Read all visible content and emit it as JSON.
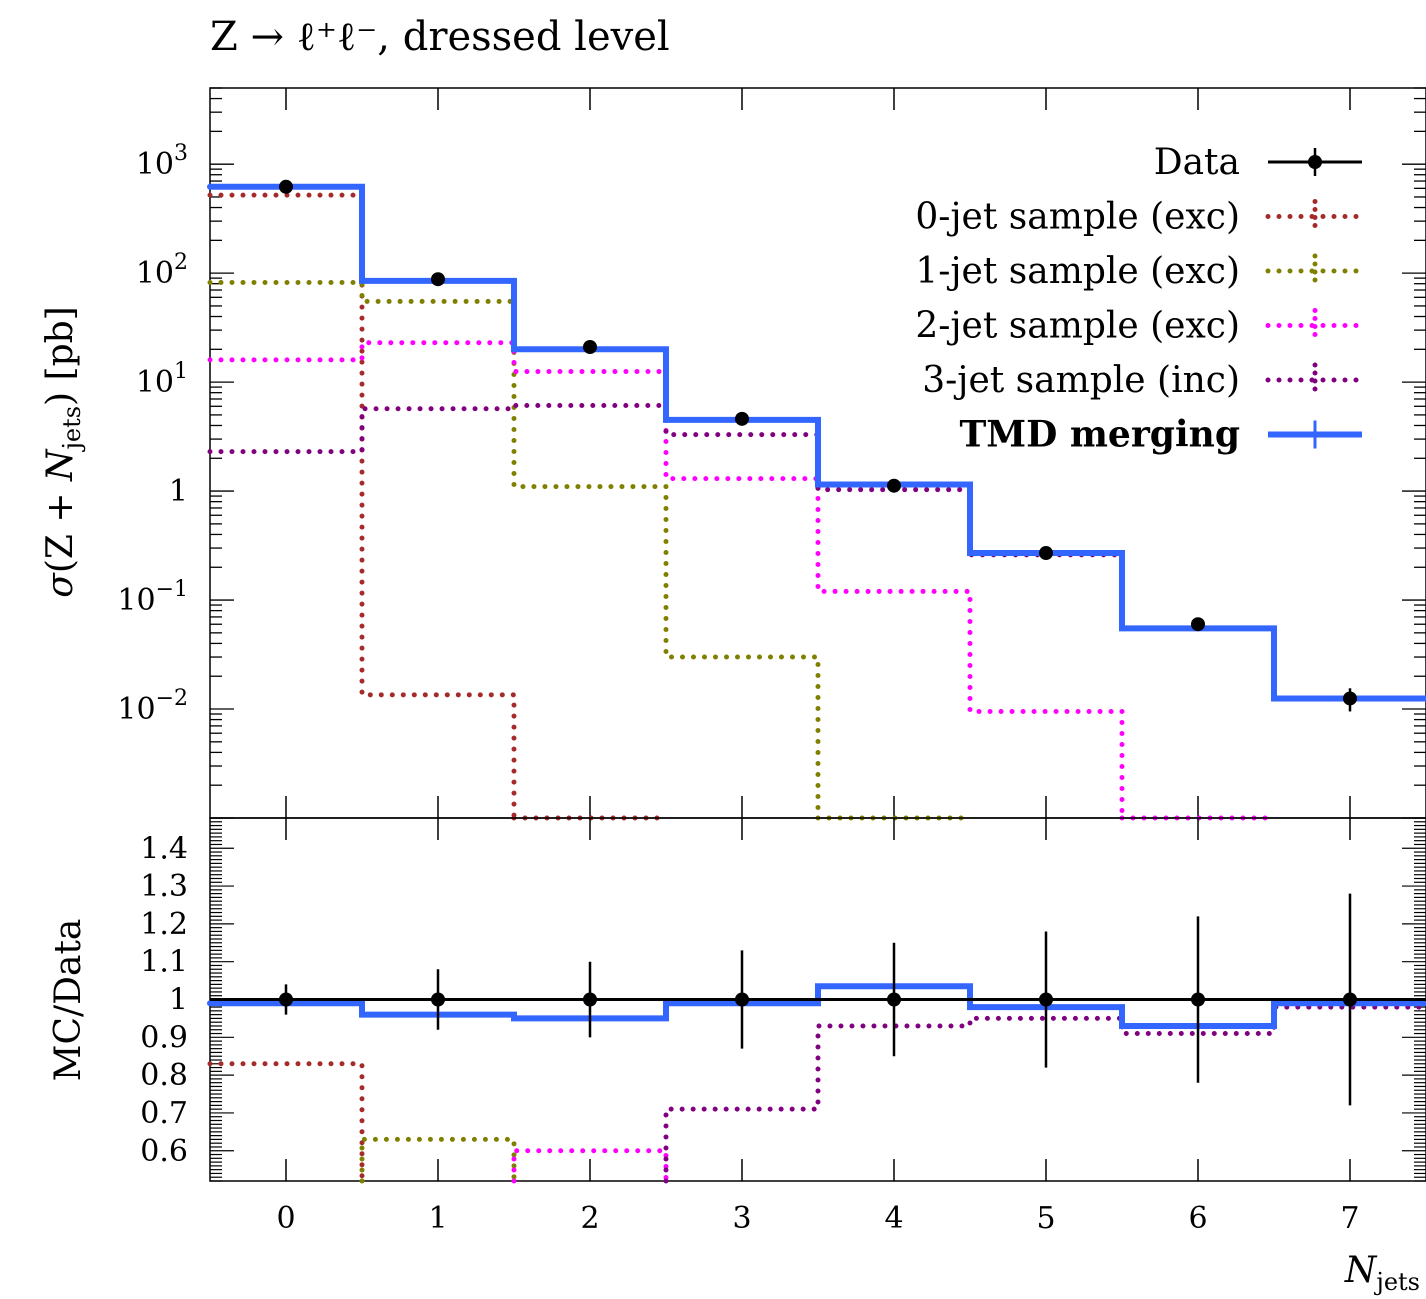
{
  "chart_data": [
    {
      "type": "line",
      "panel": "main",
      "title": "Z → ℓ⁺ℓ⁻, dressed level",
      "ylabel": "σ(Z + N_jets) [pb]",
      "yscale": "log",
      "ylim": [
        0.001,
        5000
      ],
      "xlim": [
        -0.5,
        7.5
      ],
      "x_ticks": [
        "0",
        "1",
        "2",
        "3",
        "4",
        "5",
        "6",
        "7"
      ],
      "y_ticks": [
        {
          "value": 1000,
          "base": "10",
          "exp": "3"
        },
        {
          "value": 100,
          "base": "10",
          "exp": "2"
        },
        {
          "value": 10,
          "base": "10",
          "exp": "1"
        },
        {
          "value": 1,
          "base": "1",
          "exp": ""
        },
        {
          "value": 0.1,
          "base": "10",
          "exp": "−1"
        },
        {
          "value": 0.01,
          "base": "10",
          "exp": "−2"
        }
      ],
      "legend_placement": "top-right",
      "x": [
        0,
        1,
        2,
        3,
        4,
        5,
        6,
        7
      ],
      "data": {
        "name": "Data",
        "color": "#000000",
        "values": [
          620,
          88,
          21,
          4.6,
          1.12,
          0.27,
          0.06,
          0.0125
        ],
        "err_low": [
          0,
          0,
          0,
          0,
          0,
          0.02,
          0.008,
          0.003
        ],
        "err_high": [
          0,
          0,
          0,
          0,
          0,
          0.02,
          0.008,
          0.003
        ]
      },
      "series": [
        {
          "name": "0-jet sample (exc)",
          "style": "dotted",
          "color": "#a52a2a",
          "values": [
            520,
            0.0135,
            0.0009,
            null,
            null,
            null,
            null,
            null
          ]
        },
        {
          "name": "1-jet sample (exc)",
          "style": "dotted",
          "color": "#808000",
          "values": [
            82,
            55,
            1.1,
            0.03,
            0.0008,
            null,
            null,
            null
          ]
        },
        {
          "name": "2-jet sample (exc)",
          "style": "dotted",
          "color": "#ff00ff",
          "values": [
            16,
            23,
            12.5,
            1.3,
            0.12,
            0.0095,
            0.0007,
            null
          ]
        },
        {
          "name": "3-jet sample (inc)",
          "style": "dotted",
          "color": "#800080",
          "values": [
            2.3,
            5.7,
            6.1,
            3.3,
            1.03,
            0.26,
            0.055,
            0.0125
          ]
        },
        {
          "name": "TMD merging",
          "style": "solid",
          "color": "#3366ff",
          "bold": true,
          "values": [
            620,
            85,
            20,
            4.5,
            1.15,
            0.27,
            0.055,
            0.0125
          ]
        }
      ]
    },
    {
      "type": "line",
      "panel": "ratio",
      "ylabel": "MC/Data",
      "xlabel": "N_jets",
      "ylim": [
        0.52,
        1.48
      ],
      "xlim": [
        -0.5,
        7.5
      ],
      "x_ticks": [
        "0",
        "1",
        "2",
        "3",
        "4",
        "5",
        "6",
        "7"
      ],
      "y_ticks": [
        "1.4",
        "1.3",
        "1.2",
        "1.1",
        "1",
        "0.9",
        "0.8",
        "0.7",
        "0.6"
      ],
      "x": [
        0,
        1,
        2,
        3,
        4,
        5,
        6,
        7
      ],
      "data": {
        "name": "Data",
        "values": [
          1,
          1,
          1,
          1,
          1,
          1,
          1,
          1
        ],
        "err_low": [
          0.04,
          0.08,
          0.1,
          0.13,
          0.15,
          0.18,
          0.22,
          0.28
        ],
        "err_high": [
          0.04,
          0.08,
          0.1,
          0.13,
          0.15,
          0.18,
          0.22,
          0.28
        ]
      },
      "series": [
        {
          "name": "0-jet sample (exc)",
          "color": "#a52a2a",
          "values": [
            0.83,
            null,
            null,
            null,
            null,
            null,
            null,
            null
          ]
        },
        {
          "name": "1-jet sample (exc)",
          "color": "#808000",
          "values": [
            null,
            0.63,
            null,
            null,
            null,
            null,
            null,
            null
          ]
        },
        {
          "name": "2-jet sample (exc)",
          "color": "#ff00ff",
          "values": [
            null,
            null,
            0.6,
            null,
            null,
            null,
            null,
            null
          ]
        },
        {
          "name": "3-jet sample (inc)",
          "color": "#800080",
          "values": [
            null,
            null,
            null,
            0.71,
            0.93,
            0.95,
            0.91,
            0.98
          ]
        },
        {
          "name": "TMD merging",
          "color": "#3366ff",
          "values": [
            0.99,
            0.96,
            0.95,
            0.99,
            1.035,
            0.98,
            0.93,
            0.99
          ]
        }
      ]
    }
  ]
}
